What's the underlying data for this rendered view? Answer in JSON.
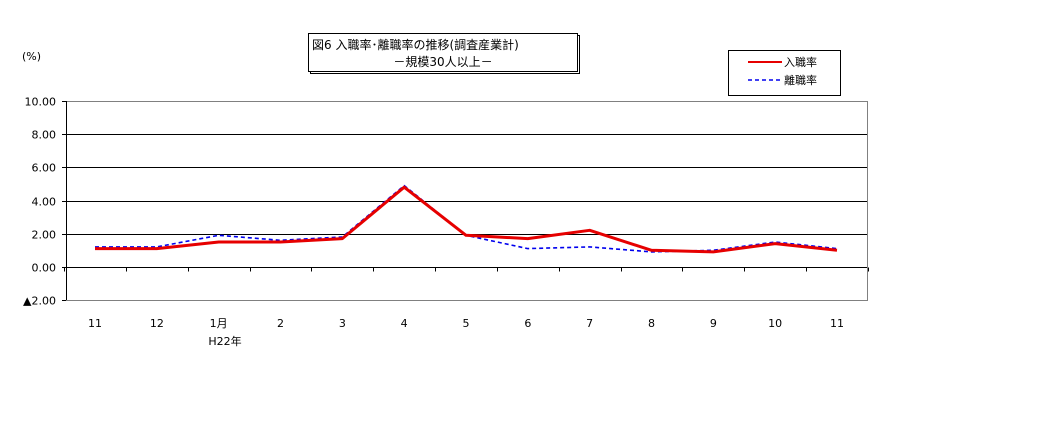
{
  "chart_data": {
    "type": "line",
    "title": "図6 入職率･離職率の推移(調査産業計)",
    "subtitle": "－規模30人以上－",
    "ylabel": "(%)",
    "xlabel": "",
    "categories": [
      "11",
      "12",
      "1月",
      "2",
      "3",
      "4",
      "5",
      "6",
      "7",
      "8",
      "9",
      "10",
      "11"
    ],
    "year_label": "H22年",
    "ylim": [
      -2,
      10
    ],
    "yticks": [
      10,
      8,
      6,
      4,
      2,
      0,
      -2
    ],
    "ytick_labels": [
      "10.00",
      "8.00",
      "6.00",
      "4.00",
      "2.00",
      "0.00",
      "▲2.00"
    ],
    "grid": true,
    "legend_position": "top-right",
    "series": [
      {
        "name": "入職率",
        "color": "#e60000",
        "style": "solid",
        "values": [
          1.1,
          1.1,
          1.5,
          1.5,
          1.7,
          4.8,
          1.9,
          1.7,
          2.2,
          1.0,
          0.9,
          1.4,
          1.0
        ]
      },
      {
        "name": "離職率",
        "color": "#0000ee",
        "style": "dashed",
        "values": [
          1.2,
          1.2,
          1.9,
          1.6,
          1.8,
          4.9,
          1.9,
          1.1,
          1.2,
          0.9,
          1.0,
          1.5,
          1.1
        ]
      }
    ]
  }
}
